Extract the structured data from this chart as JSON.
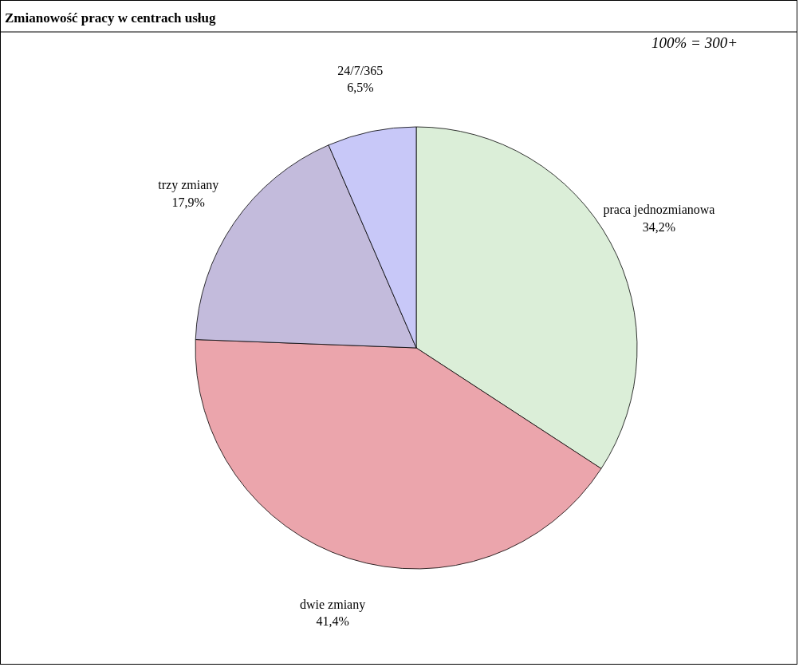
{
  "chart_data": {
    "type": "pie",
    "title": "Zmianowość pracy w centrach usług",
    "annotations": [
      "100% = 300+"
    ],
    "categories": [
      "praca jednozmianowa",
      "dwie zmiany",
      "trzy zmiany",
      "24/7/365"
    ],
    "values": [
      34.2,
      41.4,
      17.9,
      6.5
    ],
    "colors": [
      "#dbeed8",
      "#eba5ac",
      "#c3bbdc",
      "#c8c8f8"
    ],
    "value_labels": [
      "34,2%",
      "41,4%",
      "17,9%",
      "6,5%"
    ]
  }
}
